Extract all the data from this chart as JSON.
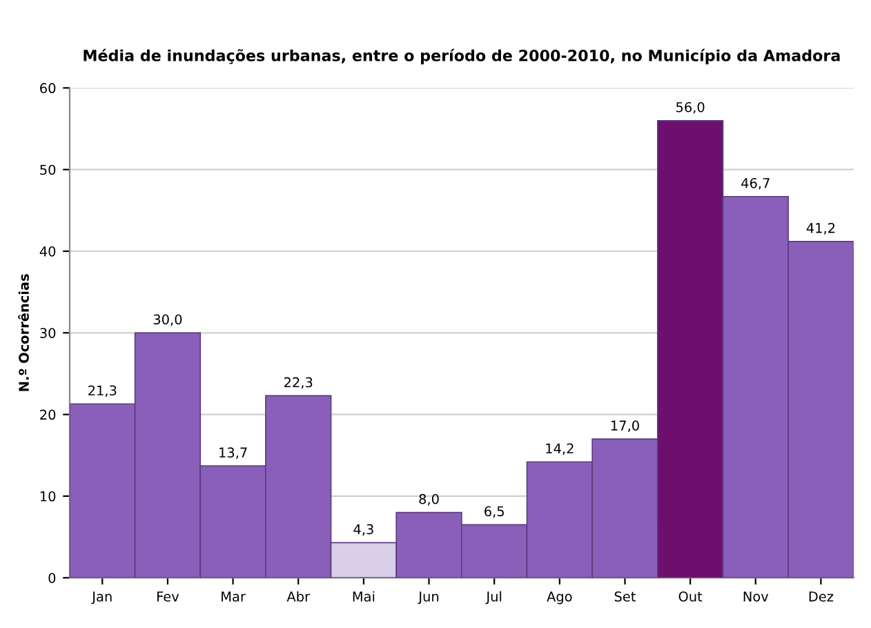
{
  "chart_data": {
    "type": "bar",
    "title": "Média de inundações urbanas, entre o período de 2000-2010, no Município da Amadora",
    "ylabel": "N.º Ocorrências",
    "categories": [
      "Jan",
      "Fev",
      "Mar",
      "Abr",
      "Mai",
      "Jun",
      "Jul",
      "Ago",
      "Set",
      "Out",
      "Nov",
      "Dez"
    ],
    "values": [
      21.3,
      30.0,
      13.7,
      22.3,
      4.3,
      8.0,
      6.5,
      14.2,
      17.0,
      56.0,
      46.7,
      41.2
    ],
    "value_labels": [
      "21,3",
      "30,0",
      "13,7",
      "22,3",
      "4,3",
      "8,0",
      "6,5",
      "14,2",
      "17,0",
      "56,0",
      "46,7",
      "41,2"
    ],
    "colors": [
      "#8a5fba",
      "#8a5fba",
      "#8a5fba",
      "#8a5fba",
      "#d9cfe8",
      "#8a5fba",
      "#8a5fba",
      "#8a5fba",
      "#8a5fba",
      "#6e0f6e",
      "#8a5fba",
      "#8a5fba"
    ],
    "ylim": [
      0,
      60
    ],
    "yticks": [
      0,
      10,
      20,
      30,
      40,
      50,
      60
    ],
    "grid": "y"
  }
}
